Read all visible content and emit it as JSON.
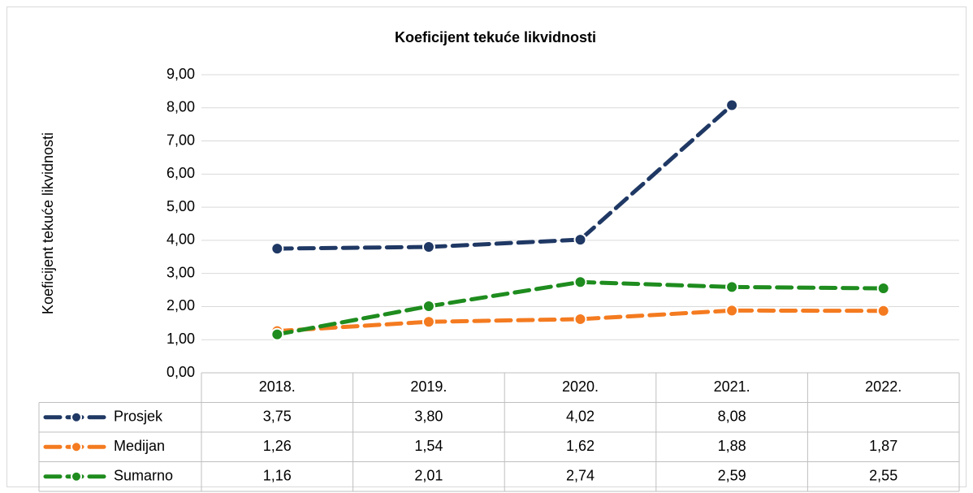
{
  "chart_data": {
    "type": "line",
    "title": "Koeficijent tekuće likvidnosti",
    "y_label": "Koeficijent tekuće likvidnosti",
    "categories": [
      "2018.",
      "2019.",
      "2020.",
      "2021.",
      "2022."
    ],
    "series": [
      {
        "name": "Prosjek",
        "color": "#1f3864",
        "values": [
          3.75,
          3.8,
          4.02,
          8.08,
          null
        ],
        "value_labels": [
          "3,75",
          "3,80",
          "4,02",
          "8,08",
          null
        ]
      },
      {
        "name": "Medijan",
        "color": "#f47b20",
        "values": [
          1.26,
          1.54,
          1.62,
          1.88,
          1.87
        ],
        "value_labels": [
          "1,26",
          "1,54",
          "1,62",
          "1,88",
          "1,87"
        ]
      },
      {
        "name": "Sumarno",
        "color": "#1e8c1e",
        "values": [
          1.16,
          2.01,
          2.74,
          2.59,
          2.55
        ],
        "value_labels": [
          "1,16",
          "2,01",
          "2,74",
          "2,59",
          "2,55"
        ]
      }
    ],
    "ylim": [
      0,
      9
    ],
    "yticks": [
      {
        "value": 0,
        "label": "0,00"
      },
      {
        "value": 1,
        "label": "1,00"
      },
      {
        "value": 2,
        "label": "2,00"
      },
      {
        "value": 3,
        "label": "3,00"
      },
      {
        "value": 4,
        "label": "4,00"
      },
      {
        "value": 5,
        "label": "5,00"
      },
      {
        "value": 6,
        "label": "6,00"
      },
      {
        "value": 7,
        "label": "7,00"
      },
      {
        "value": 8,
        "label": "8,00"
      },
      {
        "value": 9,
        "label": "9,00"
      }
    ],
    "grid": true,
    "data_table": true
  }
}
